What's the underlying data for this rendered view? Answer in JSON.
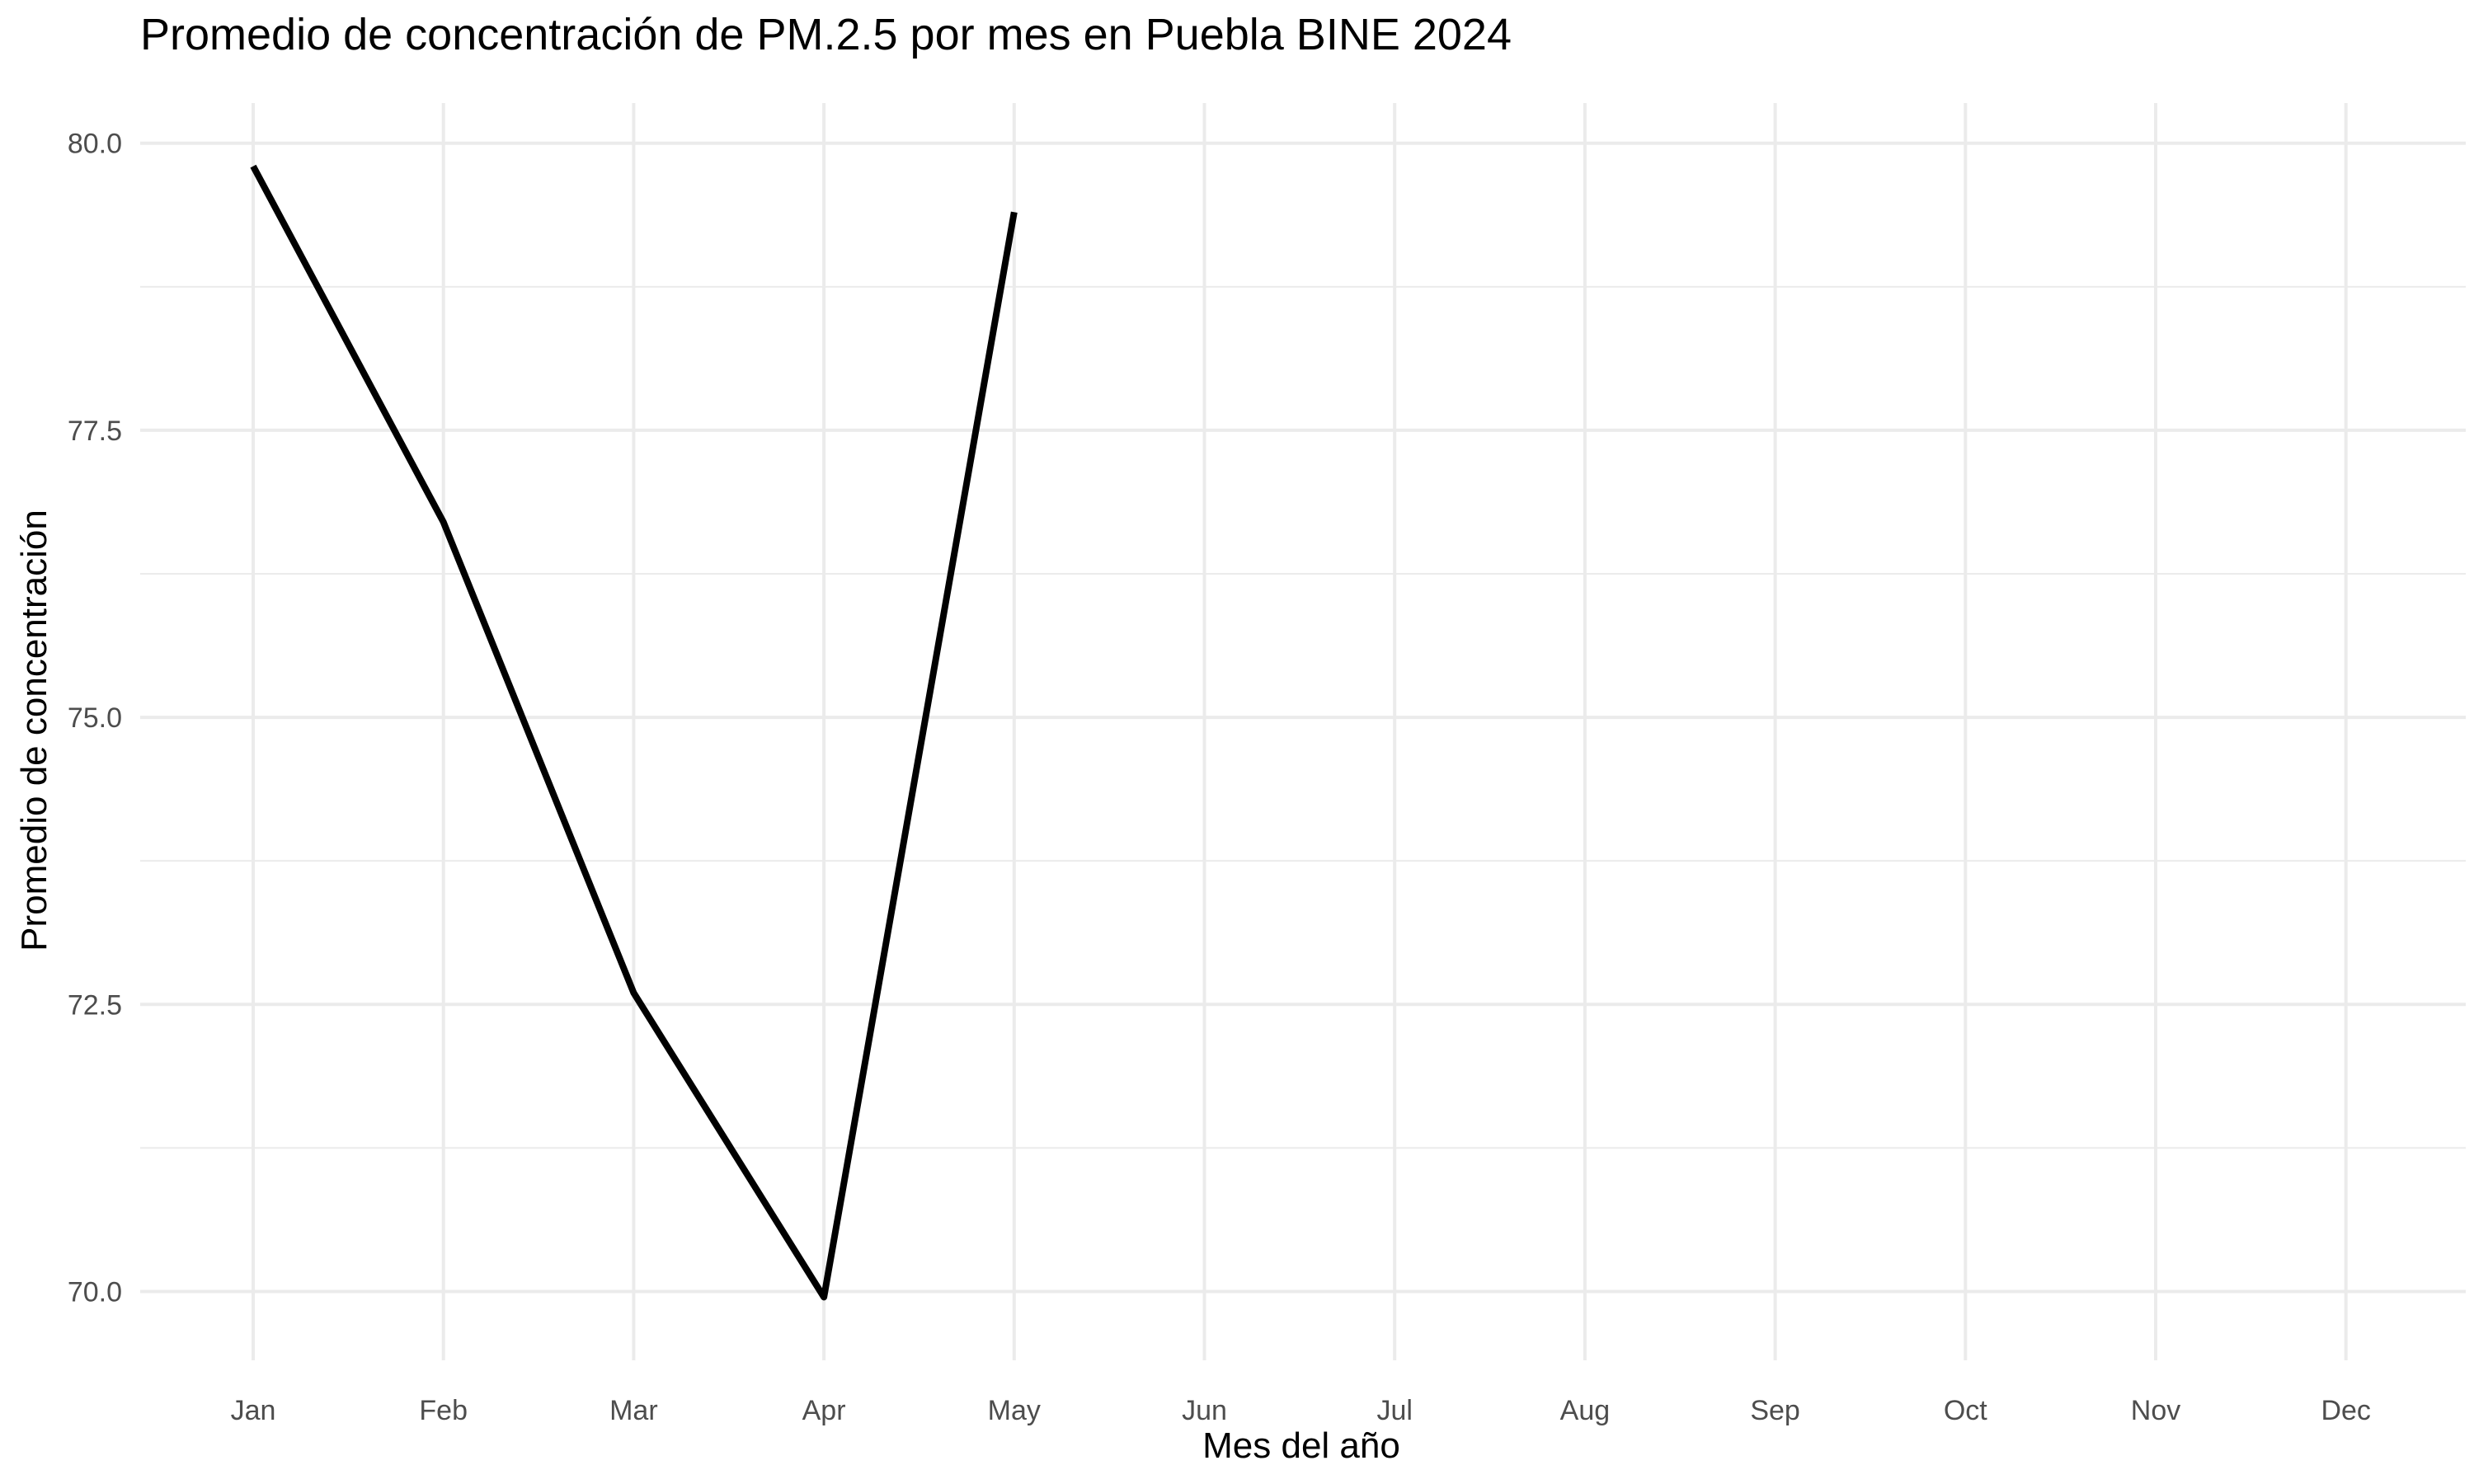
{
  "chart_data": {
    "type": "line",
    "title": "Promedio de concentración de PM.2.5 por mes en Puebla BINE 2024",
    "xlabel": "Mes del año",
    "ylabel": "Promedio de concentración",
    "categories": [
      "Jan",
      "Feb",
      "Mar",
      "Apr",
      "May",
      "Jun",
      "Jul",
      "Aug",
      "Sep",
      "Oct",
      "Nov",
      "Dec"
    ],
    "series": [
      {
        "values": [
          79.8,
          76.7,
          72.6,
          69.95,
          79.4,
          null,
          null,
          null,
          null,
          null,
          null,
          null
        ],
        "color": "#000000"
      }
    ],
    "ylim": [
      69.4,
      80.35
    ],
    "yticks": [
      70.0,
      72.5,
      75.0,
      77.5,
      80.0
    ],
    "yticks_minor": [
      71.25,
      73.75,
      76.25,
      78.75
    ],
    "ytick_labels": [
      "70.0",
      "72.5",
      "75.0",
      "77.5",
      "80.0"
    ],
    "grid": true,
    "legend": false
  }
}
